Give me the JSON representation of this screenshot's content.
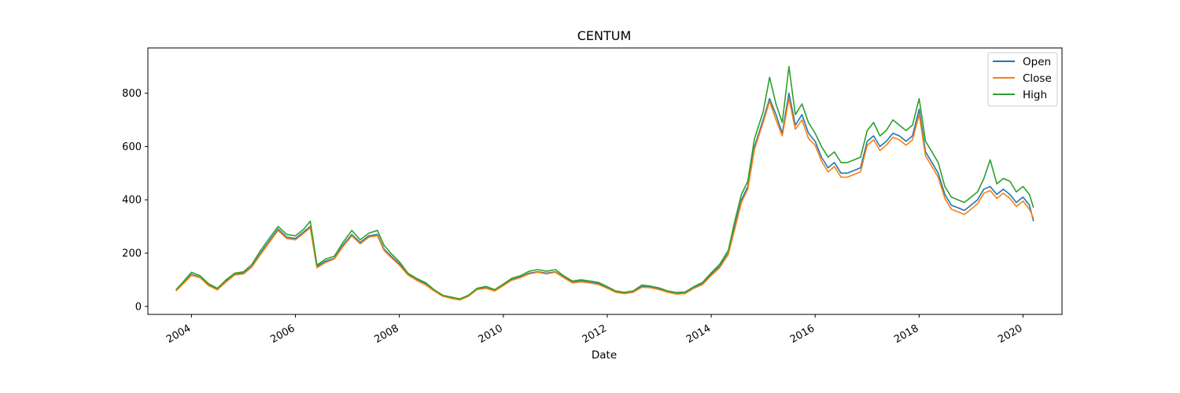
{
  "chart_data": {
    "type": "line",
    "title": "CENTUM",
    "xlabel": "Date",
    "ylabel": "",
    "x_axis_type": "date",
    "xlim": [
      "2003-03-01",
      "2020-10-01"
    ],
    "ylim": [
      -30,
      970
    ],
    "x_ticks": [
      "2004",
      "2006",
      "2008",
      "2010",
      "2012",
      "2014",
      "2016",
      "2018",
      "2020"
    ],
    "y_ticks": [
      0,
      200,
      400,
      600,
      800
    ],
    "legend_position": "top-right",
    "grid": false,
    "colors": {
      "Open": "#1f77b4",
      "Close": "#ff7f0e",
      "High": "#2ca02c"
    },
    "x": [
      "2003-09-15",
      "2003-11-01",
      "2004-01-01",
      "2004-03-01",
      "2004-05-01",
      "2004-07-01",
      "2004-09-01",
      "2004-11-01",
      "2005-01-01",
      "2005-03-01",
      "2005-05-01",
      "2005-07-01",
      "2005-09-01",
      "2005-11-01",
      "2006-01-01",
      "2006-03-01",
      "2006-04-15",
      "2006-06-01",
      "2006-08-01",
      "2006-10-01",
      "2006-12-01",
      "2007-02-01",
      "2007-04-01",
      "2007-06-01",
      "2007-08-01",
      "2007-09-15",
      "2007-11-01",
      "2008-01-01",
      "2008-03-01",
      "2008-05-01",
      "2008-07-01",
      "2008-09-01",
      "2008-11-01",
      "2009-01-01",
      "2009-03-01",
      "2009-05-01",
      "2009-07-01",
      "2009-09-01",
      "2009-11-01",
      "2010-01-01",
      "2010-03-01",
      "2010-05-01",
      "2010-07-01",
      "2010-09-01",
      "2010-11-01",
      "2011-01-01",
      "2011-03-01",
      "2011-05-01",
      "2011-07-01",
      "2011-09-01",
      "2011-11-01",
      "2012-01-01",
      "2012-03-01",
      "2012-05-01",
      "2012-07-01",
      "2012-09-01",
      "2012-11-01",
      "2013-01-01",
      "2013-03-01",
      "2013-05-01",
      "2013-07-01",
      "2013-09-01",
      "2013-11-01",
      "2014-01-01",
      "2014-03-01",
      "2014-05-01",
      "2014-06-15",
      "2014-08-01",
      "2014-09-15",
      "2014-11-01",
      "2015-01-01",
      "2015-02-15",
      "2015-04-01",
      "2015-05-15",
      "2015-07-01",
      "2015-08-15",
      "2015-10-01",
      "2015-11-15",
      "2016-01-01",
      "2016-02-15",
      "2016-04-01",
      "2016-05-15",
      "2016-07-01",
      "2016-08-15",
      "2016-10-01",
      "2016-11-15",
      "2017-01-01",
      "2017-02-15",
      "2017-04-01",
      "2017-05-15",
      "2017-07-01",
      "2017-08-15",
      "2017-10-01",
      "2017-11-15",
      "2018-01-01",
      "2018-02-15",
      "2018-04-01",
      "2018-05-15",
      "2018-07-01",
      "2018-08-15",
      "2018-10-01",
      "2018-11-15",
      "2019-01-01",
      "2019-02-15",
      "2019-04-01",
      "2019-05-15",
      "2019-07-01",
      "2019-08-15",
      "2019-10-01",
      "2019-11-15",
      "2020-01-01",
      "2020-02-15",
      "2020-03-15"
    ],
    "series": [
      {
        "name": "Open",
        "values": [
          60,
          85,
          120,
          110,
          80,
          65,
          95,
          120,
          125,
          150,
          200,
          245,
          290,
          260,
          255,
          280,
          300,
          150,
          170,
          180,
          230,
          270,
          240,
          265,
          270,
          215,
          190,
          160,
          120,
          100,
          85,
          60,
          40,
          32,
          25,
          40,
          65,
          70,
          60,
          80,
          100,
          110,
          125,
          130,
          125,
          130,
          110,
          90,
          95,
          90,
          85,
          70,
          55,
          50,
          55,
          75,
          72,
          65,
          55,
          48,
          50,
          70,
          85,
          120,
          150,
          200,
          300,
          400,
          450,
          600,
          700,
          780,
          720,
          650,
          800,
          680,
          720,
          650,
          620,
          560,
          520,
          540,
          500,
          500,
          510,
          520,
          620,
          640,
          600,
          620,
          650,
          640,
          620,
          640,
          740,
          580,
          540,
          500,
          420,
          380,
          370,
          360,
          380,
          400,
          440,
          450,
          420,
          440,
          420,
          390,
          410,
          380,
          320
        ]
      },
      {
        "name": "Close",
        "values": [
          58,
          83,
          117,
          108,
          78,
          62,
          92,
          118,
          122,
          148,
          195,
          240,
          285,
          255,
          250,
          275,
          295,
          145,
          165,
          178,
          225,
          265,
          235,
          260,
          265,
          210,
          185,
          155,
          118,
          98,
          82,
          58,
          38,
          30,
          24,
          38,
          63,
          68,
          58,
          78,
          98,
          108,
          122,
          128,
          122,
          128,
          108,
          88,
          92,
          88,
          82,
          68,
          53,
          48,
          53,
          72,
          70,
          63,
          53,
          46,
          48,
          68,
          82,
          116,
          145,
          195,
          290,
          390,
          440,
          590,
          690,
          770,
          700,
          640,
          780,
          665,
          700,
          630,
          605,
          545,
          505,
          525,
          485,
          485,
          495,
          505,
          605,
          625,
          585,
          605,
          635,
          625,
          605,
          625,
          720,
          565,
          525,
          485,
          405,
          365,
          355,
          345,
          365,
          385,
          425,
          435,
          405,
          425,
          405,
          375,
          395,
          365,
          330
        ]
      },
      {
        "name": "High",
        "values": [
          63,
          90,
          128,
          115,
          85,
          68,
          100,
          125,
          130,
          158,
          210,
          255,
          300,
          270,
          265,
          290,
          320,
          155,
          178,
          188,
          240,
          285,
          250,
          275,
          285,
          230,
          200,
          168,
          125,
          105,
          90,
          63,
          42,
          35,
          28,
          42,
          68,
          75,
          63,
          84,
          105,
          115,
          132,
          138,
          132,
          138,
          115,
          95,
          100,
          95,
          90,
          74,
          58,
          53,
          58,
          80,
          76,
          69,
          58,
          52,
          54,
          74,
          90,
          126,
          158,
          210,
          320,
          420,
          470,
          630,
          730,
          860,
          760,
          690,
          900,
          720,
          760,
          690,
          650,
          600,
          560,
          580,
          540,
          540,
          550,
          560,
          660,
          690,
          640,
          660,
          700,
          680,
          660,
          680,
          780,
          620,
          580,
          540,
          450,
          410,
          400,
          390,
          410,
          430,
          480,
          550,
          460,
          480,
          470,
          430,
          450,
          420,
          370
        ]
      }
    ]
  }
}
